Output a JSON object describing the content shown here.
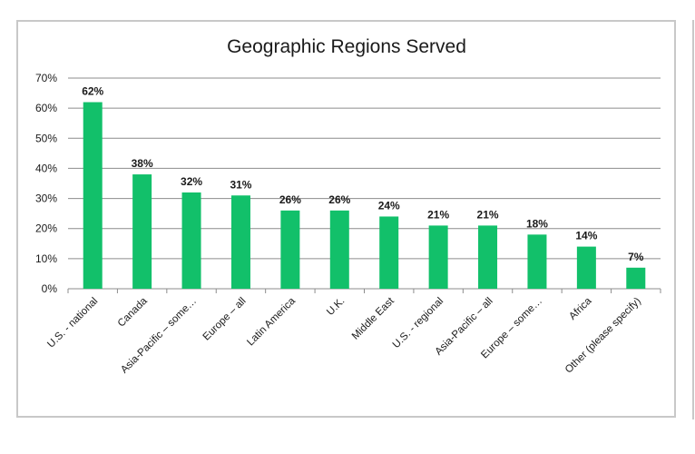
{
  "chart_data": {
    "type": "bar",
    "title": "Geographic Regions Served",
    "xlabel": "",
    "ylabel": "",
    "categories": [
      "U.S. - national",
      "Canada",
      "Asia-Pacific – some…",
      "Europe – all",
      "Latin America",
      "U.K.",
      "Middle East",
      "U.S. - regional",
      "Asia-Pacific – all",
      "Europe – some…",
      "Africa",
      "Other (please specify)"
    ],
    "values": [
      62,
      38,
      32,
      31,
      26,
      26,
      24,
      21,
      21,
      18,
      14,
      7
    ],
    "data_labels": [
      "62%",
      "38%",
      "32%",
      "31%",
      "26%",
      "26%",
      "24%",
      "21%",
      "21%",
      "18%",
      "14%",
      "7%"
    ],
    "ylim": [
      0,
      70
    ],
    "yticks": [
      "0%",
      "10%",
      "20%",
      "30%",
      "40%",
      "50%",
      "60%",
      "70%"
    ],
    "grid": true,
    "legend": "none",
    "bar_color": "#12c06a",
    "grid_color": "#8c8c8c"
  }
}
